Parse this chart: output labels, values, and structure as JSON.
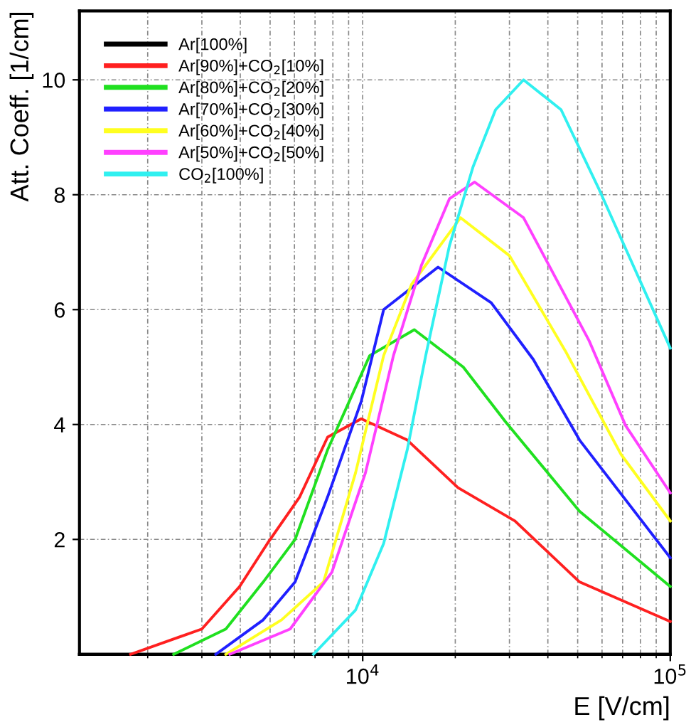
{
  "chart_data": {
    "type": "line",
    "xlabel": "E [V/cm]",
    "ylabel": "Att. Coeff. [1/cm]",
    "log": "x",
    "xlim": [
      1200,
      100000
    ],
    "ylim": [
      0,
      11.2
    ],
    "xticks": [
      {
        "value": 10000,
        "label": "10$^{4}$"
      },
      {
        "value": 100000,
        "label": "10$^{5}$"
      }
    ],
    "yticks": [
      2,
      4,
      6,
      8,
      10
    ],
    "grid": true,
    "legend": "top left",
    "marker": "none",
    "line_style": "solid",
    "series": [
      {
        "name": "Ar[100%]",
        "color": "#000000",
        "x": [
          1200,
          100000
        ],
        "values": [
          0,
          0
        ]
      },
      {
        "name": "Ar[90%]+CO$_{2}$[10%]",
        "color": "#ff2020",
        "x": [
          1760,
          3000,
          3980,
          4900,
          6240,
          7690,
          9890,
          13960,
          20420,
          31260,
          50700,
          100000
        ],
        "values": [
          0,
          0.44,
          1.18,
          1.93,
          2.74,
          3.78,
          4.1,
          3.73,
          2.9,
          2.32,
          1.26,
          0.57
        ]
      },
      {
        "name": "Ar[80%]+CO$_{2}$[20%]",
        "color": "#20e020",
        "x": [
          2430,
          3590,
          4750,
          6030,
          7690,
          10540,
          14720,
          21230,
          29110,
          50700,
          100000
        ],
        "values": [
          0,
          0.44,
          1.26,
          2.0,
          3.56,
          5.2,
          5.65,
          5.0,
          4.05,
          2.49,
          1.18
        ]
      },
      {
        "name": "Ar[70%]+CO$_{2}$[30%]",
        "color": "#2020ff",
        "x": [
          3330,
          4750,
          6030,
          7690,
          9890,
          11700,
          17580,
          26180,
          35890,
          50700,
          100000
        ],
        "values": [
          0,
          0.6,
          1.26,
          2.74,
          4.4,
          6.0,
          6.74,
          6.12,
          5.13,
          3.73,
          1.68
        ]
      },
      {
        "name": "Ar[60%]+CO$_{2}$[40%]",
        "color": "#ffff20",
        "x": [
          3590,
          5450,
          7460,
          9480,
          11700,
          14420,
          20800,
          29990,
          45600,
          69180,
          100000
        ],
        "values": [
          0,
          0.6,
          1.26,
          3.16,
          5.2,
          6.44,
          7.6,
          6.94,
          5.28,
          3.48,
          2.32
        ]
      },
      {
        "name": "Ar[50%]+CO$_{2}$[50%]",
        "color": "#ff40ff",
        "x": [
          3700,
          5810,
          7940,
          10210,
          12590,
          15520,
          19140,
          23120,
          33340,
          54450,
          71610,
          100000
        ],
        "values": [
          0,
          0.44,
          1.43,
          3.16,
          5.2,
          6.77,
          7.93,
          8.22,
          7.6,
          5.46,
          3.98,
          2.81
        ]
      },
      {
        "name": "CO$_{2}$[100%]",
        "color": "#30f0f0",
        "x": [
          6920,
          9480,
          11700,
          13960,
          16030,
          19140,
          22860,
          27040,
          33340,
          44160,
          58610,
          100000
        ],
        "values": [
          0,
          0.77,
          1.93,
          3.56,
          5.2,
          7.11,
          8.49,
          9.48,
          10.0,
          9.48,
          8.1,
          5.33
        ]
      }
    ]
  }
}
